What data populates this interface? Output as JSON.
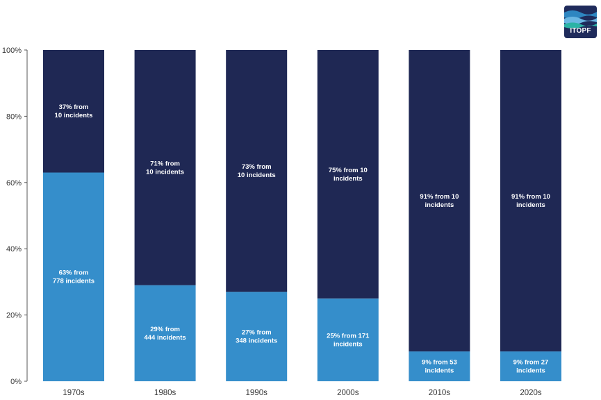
{
  "logo": {
    "text": "ITOPF"
  },
  "colors": {
    "top": "#1f2854",
    "bottom": "#358ecb",
    "axis": "#555555"
  },
  "chart_data": {
    "type": "bar",
    "stacked": true,
    "categories": [
      "1970s",
      "1980s",
      "1990s",
      "2000s",
      "2010s",
      "2020s"
    ],
    "ylim": [
      0,
      100
    ],
    "yticks": [
      "0%",
      "20%",
      "40%",
      "60%",
      "80%",
      "100%"
    ],
    "grid": false,
    "series": [
      {
        "values": [
          63,
          29,
          27,
          25,
          9,
          9
        ],
        "labels": [
          [
            "63% from",
            "778 incidents"
          ],
          [
            "29% from",
            "444 incidents"
          ],
          [
            "27% from",
            "348 incidents"
          ],
          [
            "25% from 171",
            "incidents"
          ],
          [
            "9% from 53",
            "incidents"
          ],
          [
            "9% from 27",
            "incidents"
          ]
        ]
      },
      {
        "values": [
          37,
          71,
          73,
          75,
          91,
          91
        ],
        "labels": [
          [
            "37% from",
            "10 incidents"
          ],
          [
            "71% from",
            "10 incidents"
          ],
          [
            "73% from",
            "10 incidents"
          ],
          [
            "75% from 10",
            "incidents"
          ],
          [
            "91% from 10",
            "incidents"
          ],
          [
            "91% from 10",
            "incidents"
          ]
        ]
      }
    ]
  }
}
